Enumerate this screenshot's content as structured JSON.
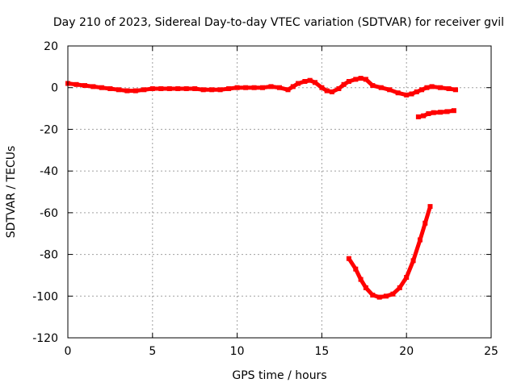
{
  "chart_data": {
    "type": "scatter",
    "title": "Day 210 of 2023, Sidereal Day-to-day VTEC variation (SDTVAR) for receiver gvil",
    "xlabel": "GPS time / hours",
    "ylabel": "SDTVAR / TECUs",
    "xlim": [
      0,
      25
    ],
    "ylim": [
      -120,
      20
    ],
    "xticks": [
      0,
      5,
      10,
      15,
      20,
      25
    ],
    "yticks": [
      20,
      0,
      -20,
      -40,
      -60,
      -80,
      -100,
      -120
    ],
    "grid": true,
    "legend": "none",
    "series": [
      {
        "name": "main-track",
        "color": "#ff0000",
        "points": [
          [
            0,
            2
          ],
          [
            0.5,
            1.5
          ],
          [
            1,
            1
          ],
          [
            1.5,
            0.5
          ],
          [
            2,
            0
          ],
          [
            2.5,
            -0.5
          ],
          [
            3,
            -1
          ],
          [
            3.5,
            -1.5
          ],
          [
            4,
            -1.5
          ],
          [
            4.5,
            -1
          ],
          [
            5,
            -0.5
          ],
          [
            5.5,
            -0.5
          ],
          [
            6,
            -0.5
          ],
          [
            6.5,
            -0.5
          ],
          [
            7,
            -0.5
          ],
          [
            7.5,
            -0.5
          ],
          [
            8,
            -1
          ],
          [
            8.5,
            -1
          ],
          [
            9,
            -1
          ],
          [
            9.5,
            -0.5
          ],
          [
            10,
            0
          ],
          [
            10.5,
            0
          ],
          [
            11,
            0
          ],
          [
            11.5,
            0
          ],
          [
            12,
            0.5
          ],
          [
            12.5,
            0
          ],
          [
            13,
            -1
          ],
          [
            13.3,
            0.5
          ],
          [
            13.6,
            2
          ],
          [
            14,
            3
          ],
          [
            14.3,
            3.5
          ],
          [
            14.6,
            2.5
          ],
          [
            15,
            0
          ],
          [
            15.3,
            -1.5
          ],
          [
            15.6,
            -2
          ],
          [
            16,
            -0.5
          ],
          [
            16.3,
            1.5
          ],
          [
            16.6,
            3
          ],
          [
            17,
            4
          ],
          [
            17.3,
            4.5
          ],
          [
            17.6,
            4
          ],
          [
            18,
            1
          ],
          [
            18.5,
            0
          ],
          [
            19,
            -1
          ],
          [
            19.5,
            -2.5
          ],
          [
            20,
            -3.5
          ],
          [
            20.3,
            -3
          ],
          [
            20.6,
            -2
          ],
          [
            20.9,
            -1
          ],
          [
            21.2,
            0
          ],
          [
            21.5,
            0.5
          ],
          [
            22,
            0
          ],
          [
            22.5,
            -0.5
          ],
          [
            22.9,
            -1
          ]
        ]
      },
      {
        "name": "upper-right-segment",
        "color": "#ff0000",
        "points": [
          [
            20.7,
            -14
          ],
          [
            21,
            -13.5
          ],
          [
            21.3,
            -12.5
          ],
          [
            21.6,
            -12
          ],
          [
            22,
            -11.8
          ],
          [
            22.4,
            -11.5
          ],
          [
            22.8,
            -11
          ]
        ]
      },
      {
        "name": "lower-arc",
        "color": "#ff0000",
        "points": [
          [
            16.6,
            -82
          ],
          [
            17,
            -87
          ],
          [
            17.3,
            -92
          ],
          [
            17.6,
            -96
          ],
          [
            18,
            -99.5
          ],
          [
            18.4,
            -100.5
          ],
          [
            18.8,
            -100
          ],
          [
            19.2,
            -99
          ],
          [
            19.6,
            -96
          ],
          [
            20,
            -91
          ],
          [
            20.4,
            -83
          ],
          [
            20.8,
            -73
          ],
          [
            21.1,
            -65
          ],
          [
            21.4,
            -57
          ]
        ]
      }
    ]
  }
}
